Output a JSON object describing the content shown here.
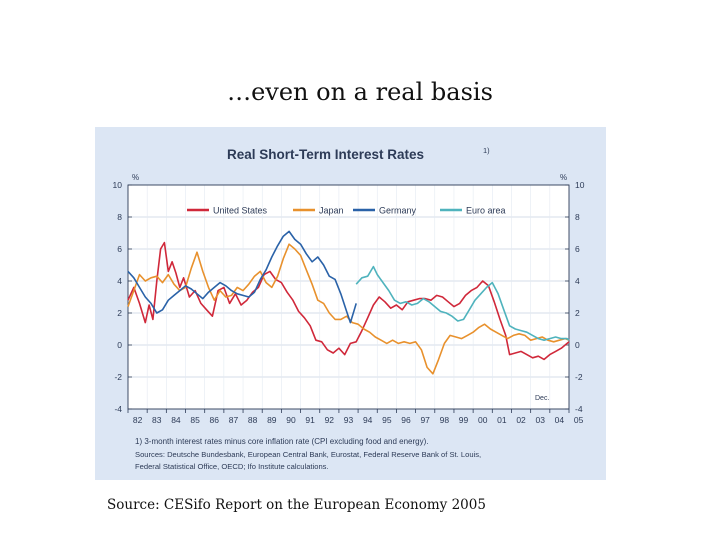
{
  "slide": {
    "title": "…even on a real basis",
    "source": "Source: CESifo Report on the European Economy 2005"
  },
  "chart_data": {
    "type": "line",
    "title": "Real Short-Term Interest Rates",
    "title_footnote": "1)",
    "y_unit_left": "%",
    "y_unit_right": "%",
    "ylim": [
      -4,
      10
    ],
    "yticks": [
      10,
      8,
      6,
      4,
      2,
      0,
      -2,
      -4
    ],
    "xlim": [
      1982,
      2005
    ],
    "x_tick_labels": [
      "82",
      "83",
      "84",
      "85",
      "86",
      "87",
      "88",
      "89",
      "90",
      "91",
      "92",
      "93",
      "94",
      "95",
      "96",
      "97",
      "98",
      "99",
      "00",
      "01",
      "02",
      "03",
      "04",
      "05"
    ],
    "end_annotation": "Dec.",
    "legend_position": "top",
    "footnote": "1) 3-month interest rates minus core inflation rate (CPI excluding food and energy).",
    "sources_line1": "Sources: Deutsche Bundesbank, European Central Bank, Eurostat, Federal Reserve Bank of St. Louis,",
    "sources_line2": "Federal Statistical Office, OECD; Ifo Institute calculations.",
    "series": [
      {
        "name": "United States",
        "color": "#d0283a",
        "points": [
          [
            1982.0,
            2.8
          ],
          [
            1982.3,
            3.6
          ],
          [
            1982.6,
            2.6
          ],
          [
            1982.9,
            1.4
          ],
          [
            1983.1,
            2.5
          ],
          [
            1983.3,
            1.6
          ],
          [
            1983.5,
            4.0
          ],
          [
            1983.7,
            6.0
          ],
          [
            1983.9,
            6.4
          ],
          [
            1984.1,
            4.6
          ],
          [
            1984.3,
            5.2
          ],
          [
            1984.5,
            4.5
          ],
          [
            1984.7,
            3.6
          ],
          [
            1984.9,
            4.2
          ],
          [
            1985.2,
            3.0
          ],
          [
            1985.5,
            3.4
          ],
          [
            1985.8,
            2.6
          ],
          [
            1986.1,
            2.2
          ],
          [
            1986.4,
            1.8
          ],
          [
            1986.7,
            3.4
          ],
          [
            1987.0,
            3.6
          ],
          [
            1987.3,
            2.6
          ],
          [
            1987.6,
            3.2
          ],
          [
            1987.9,
            2.5
          ],
          [
            1988.2,
            2.8
          ],
          [
            1988.5,
            3.3
          ],
          [
            1988.8,
            3.6
          ],
          [
            1989.1,
            4.4
          ],
          [
            1989.4,
            4.6
          ],
          [
            1989.7,
            4.1
          ],
          [
            1990.0,
            3.9
          ],
          [
            1990.3,
            3.3
          ],
          [
            1990.6,
            2.8
          ],
          [
            1990.9,
            2.1
          ],
          [
            1991.2,
            1.7
          ],
          [
            1991.5,
            1.2
          ],
          [
            1991.8,
            0.3
          ],
          [
            1992.1,
            0.2
          ],
          [
            1992.4,
            -0.3
          ],
          [
            1992.7,
            -0.5
          ],
          [
            1993.0,
            -0.2
          ],
          [
            1993.3,
            -0.6
          ],
          [
            1993.6,
            0.1
          ],
          [
            1993.9,
            0.2
          ],
          [
            1994.2,
            0.9
          ],
          [
            1994.5,
            1.7
          ],
          [
            1994.8,
            2.5
          ],
          [
            1995.1,
            3.0
          ],
          [
            1995.4,
            2.7
          ],
          [
            1995.7,
            2.3
          ],
          [
            1996.0,
            2.5
          ],
          [
            1996.3,
            2.2
          ],
          [
            1996.6,
            2.7
          ],
          [
            1996.9,
            2.8
          ],
          [
            1997.2,
            2.9
          ],
          [
            1997.5,
            2.9
          ],
          [
            1997.8,
            2.8
          ],
          [
            1998.1,
            3.1
          ],
          [
            1998.4,
            3.0
          ],
          [
            1998.7,
            2.7
          ],
          [
            1999.0,
            2.4
          ],
          [
            1999.3,
            2.6
          ],
          [
            1999.6,
            3.1
          ],
          [
            1999.9,
            3.4
          ],
          [
            2000.2,
            3.6
          ],
          [
            2000.5,
            4.0
          ],
          [
            2000.8,
            3.7
          ],
          [
            2001.1,
            2.7
          ],
          [
            2001.4,
            1.6
          ],
          [
            2001.7,
            0.6
          ],
          [
            2001.9,
            -0.6
          ],
          [
            2002.2,
            -0.5
          ],
          [
            2002.5,
            -0.4
          ],
          [
            2002.8,
            -0.6
          ],
          [
            2003.1,
            -0.8
          ],
          [
            2003.4,
            -0.7
          ],
          [
            2003.7,
            -0.9
          ],
          [
            2004.0,
            -0.6
          ],
          [
            2004.3,
            -0.4
          ],
          [
            2004.6,
            -0.2
          ],
          [
            2004.9,
            0.1
          ],
          [
            2005.0,
            0.2
          ]
        ]
      },
      {
        "name": "Japan",
        "color": "#e8912d",
        "points": [
          [
            1982.0,
            2.4
          ],
          [
            1982.3,
            3.4
          ],
          [
            1982.6,
            4.4
          ],
          [
            1982.9,
            4.0
          ],
          [
            1983.2,
            4.2
          ],
          [
            1983.5,
            4.3
          ],
          [
            1983.8,
            3.9
          ],
          [
            1984.1,
            4.4
          ],
          [
            1984.4,
            3.8
          ],
          [
            1984.7,
            3.4
          ],
          [
            1985.0,
            3.6
          ],
          [
            1985.3,
            4.8
          ],
          [
            1985.6,
            5.8
          ],
          [
            1985.9,
            4.6
          ],
          [
            1986.2,
            3.6
          ],
          [
            1986.5,
            2.8
          ],
          [
            1986.8,
            3.4
          ],
          [
            1987.1,
            3.0
          ],
          [
            1987.4,
            3.1
          ],
          [
            1987.7,
            3.6
          ],
          [
            1988.0,
            3.4
          ],
          [
            1988.3,
            3.8
          ],
          [
            1988.6,
            4.3
          ],
          [
            1988.9,
            4.6
          ],
          [
            1989.2,
            3.9
          ],
          [
            1989.5,
            3.6
          ],
          [
            1989.8,
            4.3
          ],
          [
            1990.1,
            5.4
          ],
          [
            1990.4,
            6.3
          ],
          [
            1990.7,
            6.0
          ],
          [
            1991.0,
            5.6
          ],
          [
            1991.3,
            4.7
          ],
          [
            1991.6,
            3.8
          ],
          [
            1991.9,
            2.8
          ],
          [
            1992.2,
            2.6
          ],
          [
            1992.5,
            2.0
          ],
          [
            1992.8,
            1.6
          ],
          [
            1993.1,
            1.6
          ],
          [
            1993.4,
            1.8
          ],
          [
            1993.7,
            1.4
          ],
          [
            1994.0,
            1.3
          ],
          [
            1994.3,
            1.0
          ],
          [
            1994.6,
            0.8
          ],
          [
            1994.9,
            0.5
          ],
          [
            1995.2,
            0.3
          ],
          [
            1995.5,
            0.1
          ],
          [
            1995.8,
            0.3
          ],
          [
            1996.1,
            0.1
          ],
          [
            1996.4,
            0.2
          ],
          [
            1996.7,
            0.1
          ],
          [
            1997.0,
            0.2
          ],
          [
            1997.3,
            -0.3
          ],
          [
            1997.6,
            -1.4
          ],
          [
            1997.9,
            -1.8
          ],
          [
            1998.2,
            -0.9
          ],
          [
            1998.5,
            0.1
          ],
          [
            1998.8,
            0.6
          ],
          [
            1999.1,
            0.5
          ],
          [
            1999.4,
            0.4
          ],
          [
            1999.7,
            0.6
          ],
          [
            2000.0,
            0.8
          ],
          [
            2000.3,
            1.1
          ],
          [
            2000.6,
            1.3
          ],
          [
            2000.9,
            1.0
          ],
          [
            2001.2,
            0.8
          ],
          [
            2001.5,
            0.6
          ],
          [
            2001.8,
            0.4
          ],
          [
            2002.1,
            0.6
          ],
          [
            2002.4,
            0.7
          ],
          [
            2002.7,
            0.6
          ],
          [
            2003.0,
            0.3
          ],
          [
            2003.3,
            0.4
          ],
          [
            2003.6,
            0.5
          ],
          [
            2003.9,
            0.3
          ],
          [
            2004.2,
            0.2
          ],
          [
            2004.5,
            0.3
          ],
          [
            2004.8,
            0.4
          ],
          [
            2005.0,
            0.3
          ]
        ]
      },
      {
        "name": "Germany",
        "color": "#2a62a8",
        "points": [
          [
            1982.0,
            4.6
          ],
          [
            1982.3,
            4.2
          ],
          [
            1982.6,
            3.6
          ],
          [
            1982.9,
            3.0
          ],
          [
            1983.2,
            2.6
          ],
          [
            1983.5,
            2.0
          ],
          [
            1983.8,
            2.2
          ],
          [
            1984.1,
            2.8
          ],
          [
            1984.4,
            3.1
          ],
          [
            1984.7,
            3.4
          ],
          [
            1985.0,
            3.7
          ],
          [
            1985.3,
            3.5
          ],
          [
            1985.6,
            3.2
          ],
          [
            1985.9,
            2.9
          ],
          [
            1986.2,
            3.3
          ],
          [
            1986.5,
            3.6
          ],
          [
            1986.8,
            3.9
          ],
          [
            1987.1,
            3.7
          ],
          [
            1987.4,
            3.4
          ],
          [
            1987.7,
            3.2
          ],
          [
            1988.0,
            3.1
          ],
          [
            1988.3,
            3.0
          ],
          [
            1988.6,
            3.3
          ],
          [
            1988.9,
            4.1
          ],
          [
            1989.2,
            4.7
          ],
          [
            1989.5,
            5.5
          ],
          [
            1989.8,
            6.2
          ],
          [
            1990.1,
            6.8
          ],
          [
            1990.4,
            7.1
          ],
          [
            1990.7,
            6.6
          ],
          [
            1991.0,
            6.3
          ],
          [
            1991.3,
            5.7
          ],
          [
            1991.6,
            5.2
          ],
          [
            1991.9,
            5.5
          ],
          [
            1992.2,
            5.0
          ],
          [
            1992.5,
            4.3
          ],
          [
            1992.8,
            4.1
          ],
          [
            1993.1,
            3.2
          ],
          [
            1993.4,
            2.1
          ],
          [
            1993.6,
            1.4
          ],
          [
            1993.8,
            2.2
          ],
          [
            1993.9,
            2.6
          ]
        ]
      },
      {
        "name": "Euro area",
        "color": "#4fb3bd",
        "points": [
          [
            1993.9,
            3.8
          ],
          [
            1994.2,
            4.2
          ],
          [
            1994.5,
            4.3
          ],
          [
            1994.8,
            4.9
          ],
          [
            1995.0,
            4.4
          ],
          [
            1995.3,
            3.9
          ],
          [
            1995.6,
            3.4
          ],
          [
            1995.9,
            2.8
          ],
          [
            1996.2,
            2.6
          ],
          [
            1996.5,
            2.7
          ],
          [
            1996.8,
            2.5
          ],
          [
            1997.1,
            2.6
          ],
          [
            1997.4,
            2.9
          ],
          [
            1997.7,
            2.7
          ],
          [
            1998.0,
            2.4
          ],
          [
            1998.3,
            2.1
          ],
          [
            1998.6,
            2.0
          ],
          [
            1998.9,
            1.8
          ],
          [
            1999.2,
            1.5
          ],
          [
            1999.5,
            1.6
          ],
          [
            1999.8,
            2.2
          ],
          [
            2000.1,
            2.8
          ],
          [
            2000.4,
            3.2
          ],
          [
            2000.7,
            3.6
          ],
          [
            2001.0,
            3.9
          ],
          [
            2001.3,
            3.2
          ],
          [
            2001.6,
            2.2
          ],
          [
            2001.9,
            1.2
          ],
          [
            2002.2,
            1.0
          ],
          [
            2002.5,
            0.9
          ],
          [
            2002.8,
            0.8
          ],
          [
            2003.1,
            0.6
          ],
          [
            2003.4,
            0.4
          ],
          [
            2003.7,
            0.3
          ],
          [
            2004.0,
            0.4
          ],
          [
            2004.3,
            0.5
          ],
          [
            2004.6,
            0.4
          ],
          [
            2004.9,
            0.4
          ],
          [
            2005.0,
            0.3
          ]
        ]
      }
    ]
  }
}
